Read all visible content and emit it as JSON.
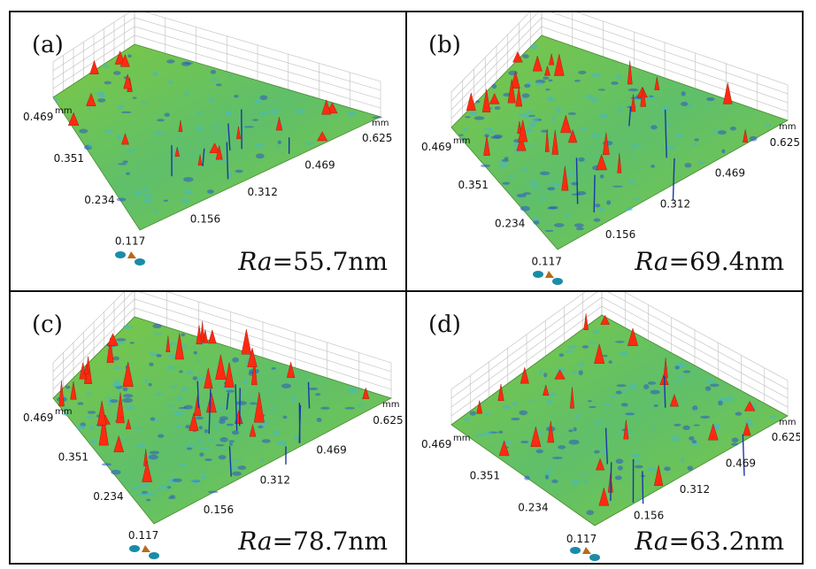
{
  "panels": [
    {
      "label": "(a)",
      "ra_symbol": "Ra",
      "ra_value": "=55.7nm",
      "y_ticks": [
        "0.469",
        "0.351",
        "0.234",
        "0.117"
      ],
      "x_ticks": [
        "0.156",
        "0.312",
        "0.469",
        "0.625"
      ],
      "unit_y": "mm",
      "unit_x": "mm"
    },
    {
      "label": "(b)",
      "ra_symbol": "Ra",
      "ra_value": "=69.4nm",
      "y_ticks": [
        "0.469",
        "0.351",
        "0.234",
        "0.117"
      ],
      "x_ticks": [
        "0.156",
        "0.312",
        "0.469",
        "0.625"
      ],
      "unit_y": "mm",
      "unit_x": "mm"
    },
    {
      "label": "(c)",
      "ra_symbol": "Ra",
      "ra_value": "=78.7nm",
      "y_ticks": [
        "0.469",
        "0.351",
        "0.234",
        "0.117"
      ],
      "x_ticks": [
        "0.156",
        "0.312",
        "0.469",
        "0.625"
      ],
      "unit_y": "mm",
      "unit_x": "mm"
    },
    {
      "label": "(d)",
      "ra_symbol": "Ra",
      "ra_value": "=63.2nm",
      "y_ticks": [
        "0.469",
        "0.351",
        "0.234",
        "0.117"
      ],
      "x_ticks": [
        "0.156",
        "0.312",
        "0.469",
        "0.625"
      ],
      "unit_y": "mm",
      "unit_x": "mm"
    }
  ],
  "colors": {
    "surface_low": "#2a55c8",
    "surface_mid": "#7cc843",
    "surface_high": "#d8251a",
    "peak": "#ff2a10",
    "pit": "#1838a8",
    "grid_line": "#bdbdbd",
    "border": "#111111"
  }
}
